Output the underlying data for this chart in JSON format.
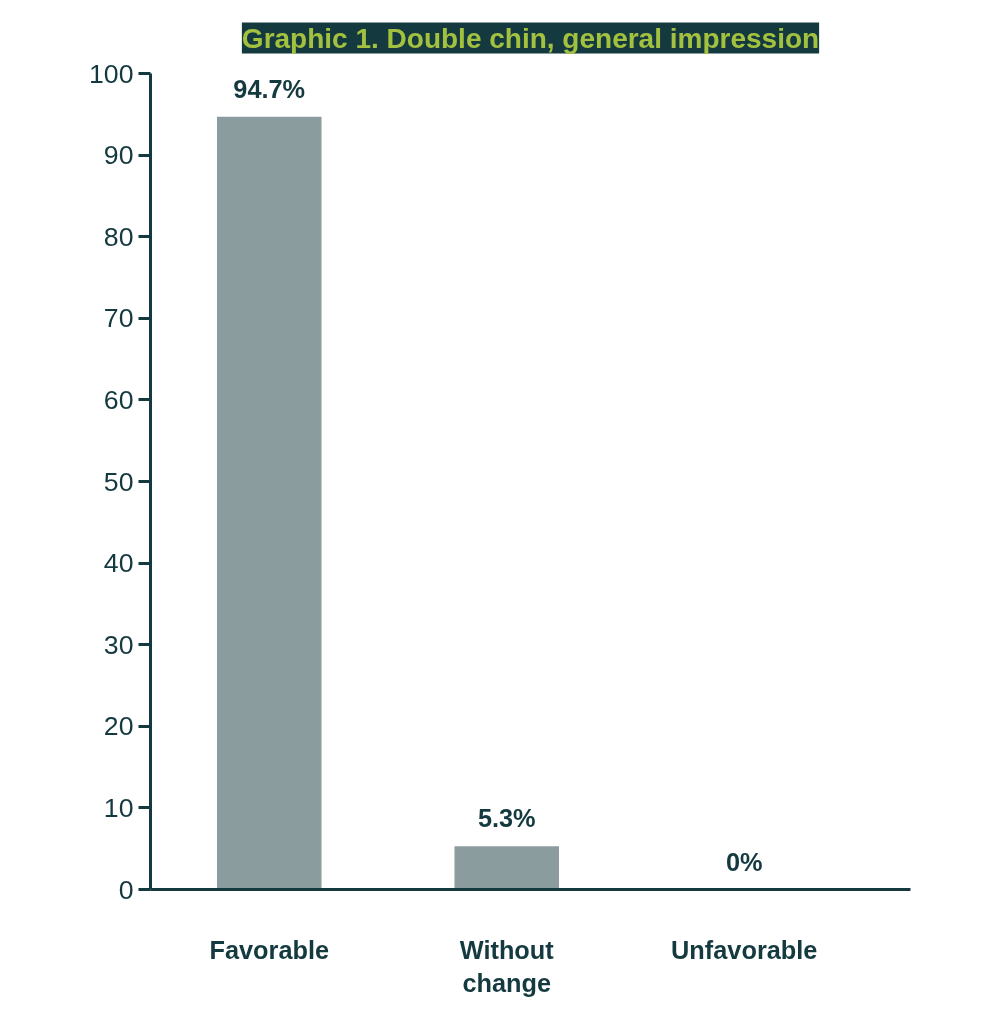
{
  "chart_data": {
    "type": "bar",
    "title": "Graphic 1. Double chin, general impression",
    "categories": [
      "Favorable",
      "Without change",
      "Unfavorable"
    ],
    "values": [
      94.7,
      5.3,
      0
    ],
    "value_labels": [
      "94.7%",
      "5.3%",
      "0%"
    ],
    "color": "#8a9c9e",
    "ylim": [
      0,
      100
    ],
    "yticks": [
      0,
      10,
      20,
      30,
      40,
      50,
      60,
      70,
      80,
      90,
      100
    ],
    "grid": false
  }
}
